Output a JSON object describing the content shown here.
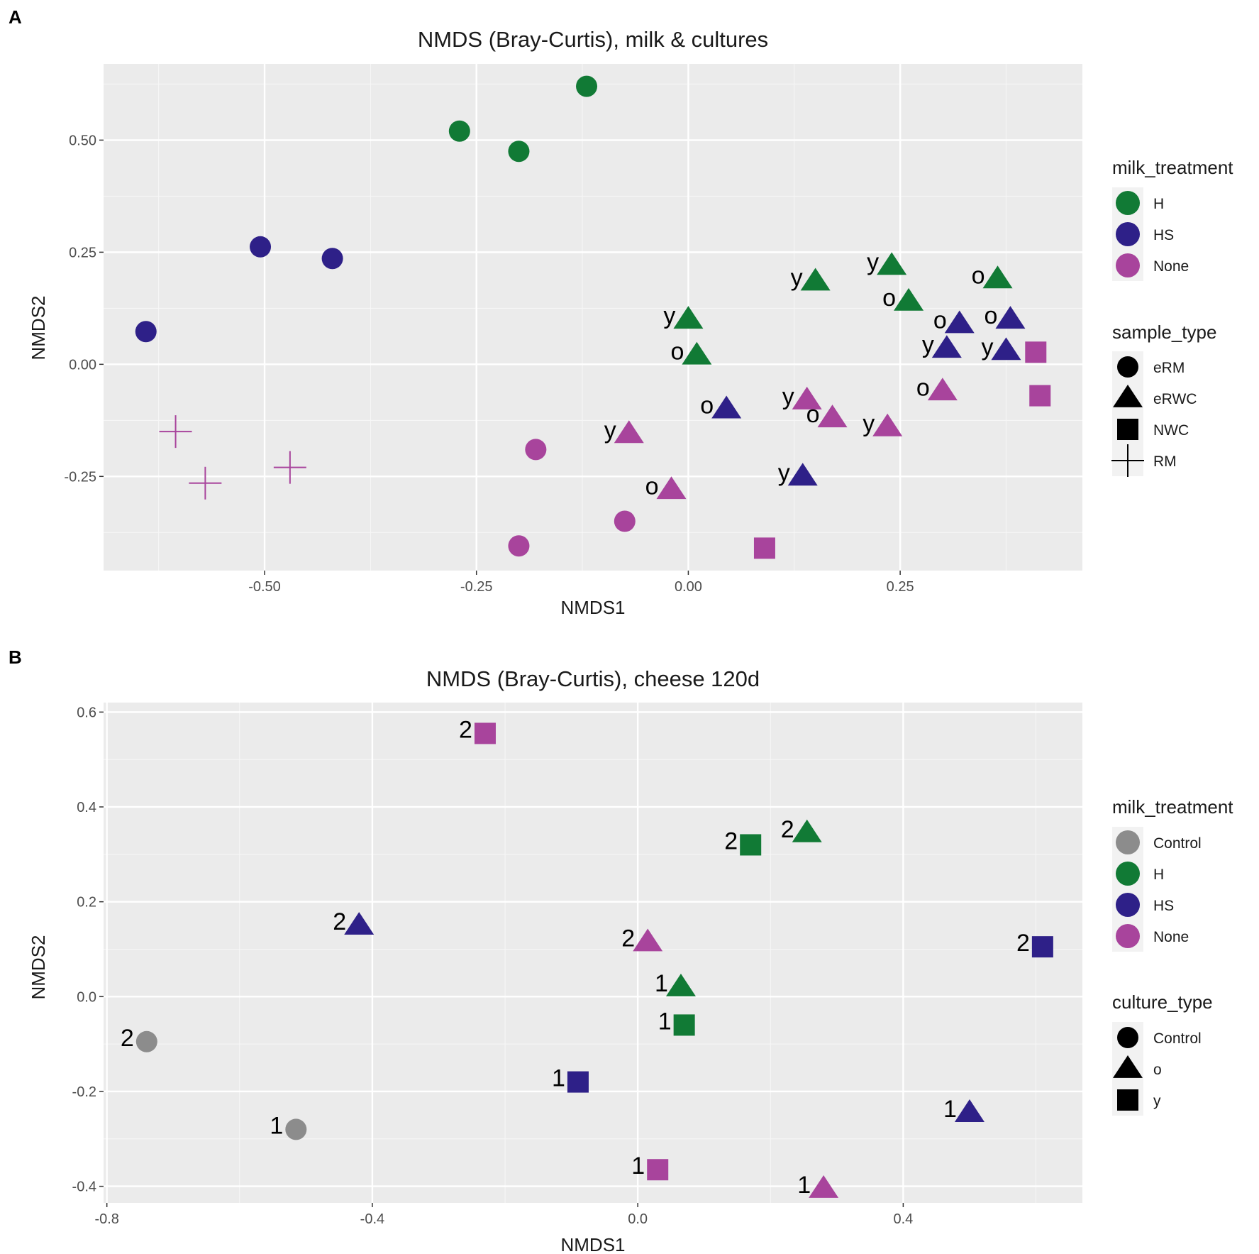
{
  "chart_data": [
    {
      "panel": "A",
      "type": "scatter",
      "title": "NMDS (Bray-Curtis), milk & cultures",
      "xlabel": "NMDS1",
      "ylabel": "NMDS2",
      "xlim": [
        -0.69,
        0.465
      ],
      "ylim": [
        -0.46,
        0.67
      ],
      "xticks": [
        -0.5,
        -0.25,
        0.0,
        0.25
      ],
      "xtick_labels": [
        "-0.50",
        "-0.25",
        "0.00",
        "0.25"
      ],
      "yticks": [
        -0.25,
        0.0,
        0.25,
        0.5
      ],
      "ytick_labels": [
        "-0.25",
        "0.00",
        "0.25",
        "0.50"
      ],
      "color_legend": {
        "title": "milk_treatment",
        "items": [
          {
            "label": "H",
            "color": "#117A35"
          },
          {
            "label": "HS",
            "color": "#2E2088"
          },
          {
            "label": "None",
            "color": "#A8449C"
          }
        ]
      },
      "shape_legend": {
        "title": "sample_type",
        "items": [
          {
            "label": "eRM",
            "shape": "circle"
          },
          {
            "label": "eRWC",
            "shape": "triangle"
          },
          {
            "label": "NWC",
            "shape": "square"
          },
          {
            "label": "RM",
            "shape": "cross"
          }
        ]
      },
      "points": [
        {
          "x": -0.12,
          "y": 0.62,
          "group": "H",
          "shape": "circle",
          "label": ""
        },
        {
          "x": -0.27,
          "y": 0.52,
          "group": "H",
          "shape": "circle",
          "label": ""
        },
        {
          "x": -0.2,
          "y": 0.475,
          "group": "H",
          "shape": "circle",
          "label": ""
        },
        {
          "x": -0.505,
          "y": 0.262,
          "group": "HS",
          "shape": "circle",
          "label": ""
        },
        {
          "x": -0.42,
          "y": 0.236,
          "group": "HS",
          "shape": "circle",
          "label": ""
        },
        {
          "x": -0.64,
          "y": 0.073,
          "group": "HS",
          "shape": "circle",
          "label": ""
        },
        {
          "x": -0.18,
          "y": -0.19,
          "group": "None",
          "shape": "circle",
          "label": ""
        },
        {
          "x": -0.075,
          "y": -0.35,
          "group": "None",
          "shape": "circle",
          "label": ""
        },
        {
          "x": -0.2,
          "y": -0.405,
          "group": "None",
          "shape": "circle",
          "label": ""
        },
        {
          "x": -0.605,
          "y": -0.15,
          "group": "None",
          "shape": "cross",
          "label": ""
        },
        {
          "x": -0.57,
          "y": -0.265,
          "group": "None",
          "shape": "cross",
          "label": ""
        },
        {
          "x": -0.47,
          "y": -0.23,
          "group": "None",
          "shape": "cross",
          "label": ""
        },
        {
          "x": 0.0,
          "y": 0.1,
          "group": "H",
          "shape": "triangle",
          "label": "y"
        },
        {
          "x": 0.01,
          "y": 0.02,
          "group": "H",
          "shape": "triangle",
          "label": "o"
        },
        {
          "x": 0.15,
          "y": 0.185,
          "group": "H",
          "shape": "triangle",
          "label": "y"
        },
        {
          "x": 0.24,
          "y": 0.22,
          "group": "H",
          "shape": "triangle",
          "label": "y"
        },
        {
          "x": 0.26,
          "y": 0.14,
          "group": "H",
          "shape": "triangle",
          "label": "o"
        },
        {
          "x": 0.365,
          "y": 0.19,
          "group": "H",
          "shape": "triangle",
          "label": "o"
        },
        {
          "x": 0.32,
          "y": 0.09,
          "group": "HS",
          "shape": "triangle",
          "label": "o"
        },
        {
          "x": 0.38,
          "y": 0.1,
          "group": "HS",
          "shape": "triangle",
          "label": "o"
        },
        {
          "x": 0.305,
          "y": 0.035,
          "group": "HS",
          "shape": "triangle",
          "label": "y"
        },
        {
          "x": 0.375,
          "y": 0.03,
          "group": "HS",
          "shape": "triangle",
          "label": "y"
        },
        {
          "x": 0.045,
          "y": -0.1,
          "group": "HS",
          "shape": "triangle",
          "label": "o"
        },
        {
          "x": 0.135,
          "y": -0.25,
          "group": "HS",
          "shape": "triangle",
          "label": "y"
        },
        {
          "x": -0.07,
          "y": -0.155,
          "group": "None",
          "shape": "triangle",
          "label": "y"
        },
        {
          "x": -0.02,
          "y": -0.28,
          "group": "None",
          "shape": "triangle",
          "label": "o"
        },
        {
          "x": 0.14,
          "y": -0.08,
          "group": "None",
          "shape": "triangle",
          "label": "y"
        },
        {
          "x": 0.17,
          "y": -0.12,
          "group": "None",
          "shape": "triangle",
          "label": "o"
        },
        {
          "x": 0.235,
          "y": -0.14,
          "group": "None",
          "shape": "triangle",
          "label": "y"
        },
        {
          "x": 0.3,
          "y": -0.06,
          "group": "None",
          "shape": "triangle",
          "label": "o"
        },
        {
          "x": 0.41,
          "y": 0.027,
          "group": "None",
          "shape": "square",
          "label": ""
        },
        {
          "x": 0.415,
          "y": -0.07,
          "group": "None",
          "shape": "square",
          "label": ""
        },
        {
          "x": 0.09,
          "y": -0.41,
          "group": "None",
          "shape": "square",
          "label": ""
        }
      ]
    },
    {
      "panel": "B",
      "type": "scatter",
      "title": "NMDS (Bray-Curtis), cheese 120d",
      "xlabel": "NMDS1",
      "ylabel": "NMDS2",
      "xlim": [
        -0.805,
        0.67
      ],
      "ylim": [
        -0.435,
        0.62
      ],
      "xticks": [
        -0.8,
        -0.4,
        0.0,
        0.4
      ],
      "xtick_labels": [
        "-0.8",
        "-0.4",
        "0.0",
        "0.4"
      ],
      "yticks": [
        -0.4,
        -0.2,
        0.0,
        0.2,
        0.4,
        0.6
      ],
      "ytick_labels": [
        "-0.4",
        "-0.2",
        "0.0",
        "0.2",
        "0.4",
        "0.6"
      ],
      "color_legend": {
        "title": "milk_treatment",
        "items": [
          {
            "label": "Control",
            "color": "#8C8C8C"
          },
          {
            "label": "H",
            "color": "#117A35"
          },
          {
            "label": "HS",
            "color": "#2E2088"
          },
          {
            "label": "None",
            "color": "#A8449C"
          }
        ]
      },
      "shape_legend": {
        "title": "culture_type",
        "items": [
          {
            "label": "Control",
            "shape": "circle"
          },
          {
            "label": "o",
            "shape": "triangle"
          },
          {
            "label": "y",
            "shape": "square"
          }
        ]
      },
      "points": [
        {
          "x": -0.23,
          "y": 0.555,
          "group": "None",
          "shape": "square",
          "label": "2"
        },
        {
          "x": 0.17,
          "y": 0.32,
          "group": "H",
          "shape": "square",
          "label": "2"
        },
        {
          "x": 0.255,
          "y": 0.345,
          "group": "H",
          "shape": "triangle",
          "label": "2"
        },
        {
          "x": -0.42,
          "y": 0.15,
          "group": "HS",
          "shape": "triangle",
          "label": "2"
        },
        {
          "x": 0.015,
          "y": 0.115,
          "group": "None",
          "shape": "triangle",
          "label": "2"
        },
        {
          "x": 0.61,
          "y": 0.105,
          "group": "HS",
          "shape": "square",
          "label": "2"
        },
        {
          "x": 0.065,
          "y": 0.02,
          "group": "H",
          "shape": "triangle",
          "label": "1"
        },
        {
          "x": 0.07,
          "y": -0.06,
          "group": "H",
          "shape": "square",
          "label": "1"
        },
        {
          "x": -0.74,
          "y": -0.095,
          "group": "Control",
          "shape": "circle",
          "label": "2"
        },
        {
          "x": -0.515,
          "y": -0.28,
          "group": "Control",
          "shape": "circle",
          "label": "1"
        },
        {
          "x": -0.09,
          "y": -0.18,
          "group": "HS",
          "shape": "square",
          "label": "1"
        },
        {
          "x": 0.5,
          "y": -0.245,
          "group": "HS",
          "shape": "triangle",
          "label": "1"
        },
        {
          "x": 0.03,
          "y": -0.365,
          "group": "None",
          "shape": "square",
          "label": "1"
        },
        {
          "x": 0.28,
          "y": -0.405,
          "group": "None",
          "shape": "triangle",
          "label": "1"
        }
      ]
    }
  ]
}
